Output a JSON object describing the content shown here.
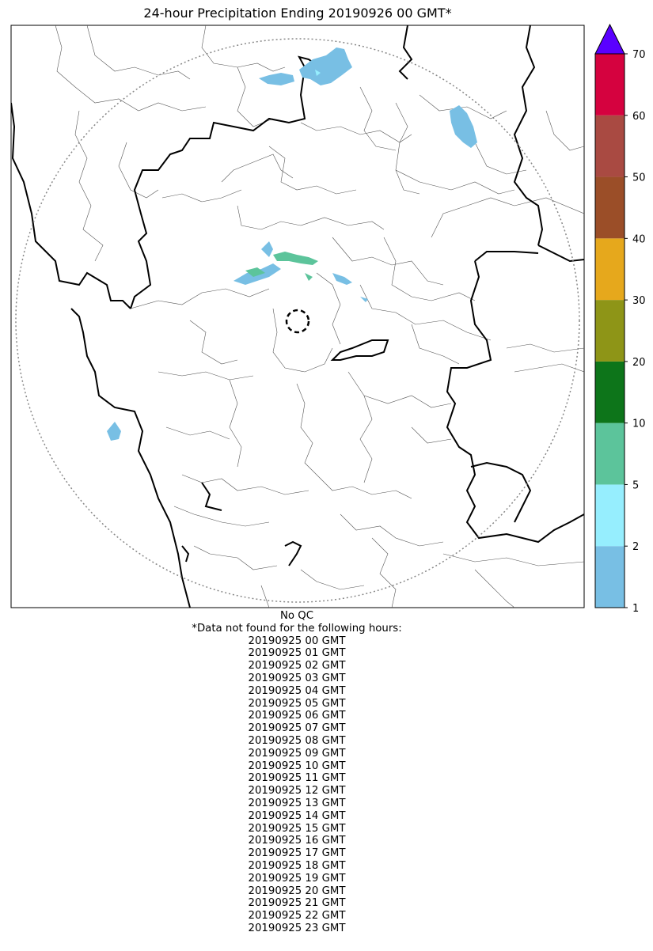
{
  "title": "24-hour Precipitation Ending 20190926 00 GMT*",
  "colorbar": {
    "ticks": [
      "1",
      "2",
      "5",
      "10",
      "20",
      "30",
      "40",
      "50",
      "60",
      "70"
    ],
    "colors": [
      "#78bfe4",
      "#96eefe",
      "#5cc49b",
      "#0d751a",
      "#8e9517",
      "#e6a81c",
      "#9b4e28",
      "#a94a42",
      "#d5023f"
    ],
    "extend_color": "#5a00ff"
  },
  "notes": {
    "qc": "No QC",
    "missing_header": "*Data not found for the following hours:",
    "missing_hours": [
      "20190925 00 GMT",
      "20190925 01 GMT",
      "20190925 02 GMT",
      "20190925 03 GMT",
      "20190925 04 GMT",
      "20190925 05 GMT",
      "20190925 06 GMT",
      "20190925 07 GMT",
      "20190925 08 GMT",
      "20190925 09 GMT",
      "20190925 10 GMT",
      "20190925 11 GMT",
      "20190925 12 GMT",
      "20190925 13 GMT",
      "20190925 14 GMT",
      "20190925 15 GMT",
      "20190925 16 GMT",
      "20190925 17 GMT",
      "20190925 18 GMT",
      "20190925 19 GMT",
      "20190925 20 GMT",
      "20190925 21 GMT",
      "20190925 22 GMT",
      "20190925 23 GMT"
    ]
  }
}
